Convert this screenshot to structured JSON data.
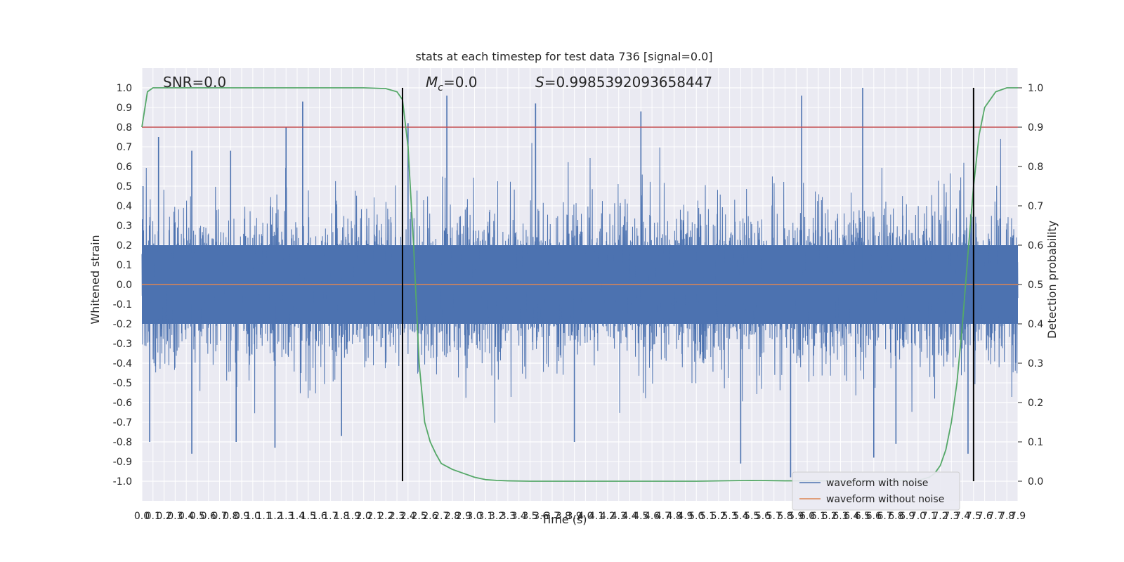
{
  "chart_data": {
    "type": "line",
    "title": "stats at each timestep for test data 736 [signal=0.0]",
    "xlabel": "Time (s)",
    "ylabel": "Whitened strain",
    "y2label": "Detection probability",
    "xlim": [
      0.0,
      7.9
    ],
    "ylim": [
      -1.1,
      1.1
    ],
    "y2lim": [
      -0.05,
      1.05
    ],
    "x_tick_labels": [
      "0.0",
      "0.1",
      "0.2",
      "0.3",
      "0.4",
      "0.5",
      "0.6",
      "0.7",
      "0.8",
      "0.9",
      "1.0",
      "1.1",
      "1.2",
      "1.3",
      "1.4",
      "1.5",
      "1.6",
      "1.7",
      "1.8",
      "1.9",
      "2.0",
      "2.1",
      "2.2",
      "2.3",
      "2.4",
      "2.5",
      "2.6",
      "2.7",
      "2.8",
      "2.9",
      "3.0",
      "3.1",
      "3.2",
      "3.3",
      "3.4",
      "3.5",
      "3.6",
      "3.7",
      "3.8",
      "3.9",
      "4.0",
      "4.1",
      "4.2",
      "4.3",
      "4.4",
      "4.5",
      "4.6",
      "4.7",
      "4.8",
      "4.9",
      "5.0",
      "5.1",
      "5.2",
      "5.3",
      "5.4",
      "5.5",
      "5.6",
      "5.7",
      "5.8",
      "5.9",
      "6.0",
      "6.1",
      "6.2",
      "6.3",
      "6.4",
      "6.5",
      "6.6",
      "6.7",
      "6.8",
      "6.9",
      "7.0",
      "7.1",
      "7.2",
      "7.3",
      "7.4",
      "7.5",
      "7.6",
      "7.7",
      "7.8",
      "7.9"
    ],
    "y_tick_labels": [
      "1.0",
      "0.9",
      "0.8",
      "0.7",
      "0.6",
      "0.5",
      "0.4",
      "0.3",
      "0.2",
      "0.1",
      "0.0",
      "-0.1",
      "-0.2",
      "-0.3",
      "-0.4",
      "-0.5",
      "-0.6",
      "-0.7",
      "-0.8",
      "-0.9",
      "-1.0"
    ],
    "y2_tick_labels": [
      "1.0",
      "0.9",
      "0.8",
      "0.7",
      "0.6",
      "0.5",
      "0.4",
      "0.3",
      "0.2",
      "0.1",
      "0.0"
    ],
    "annotations": {
      "snr": "SNR=0.0",
      "mc_symbol": "M",
      "mc_sub": "c",
      "mc_value": "=0.0",
      "s_symbol": "S",
      "s_value": "=0.9985392093658447"
    },
    "legend": {
      "placement": "lower right",
      "entries": [
        "waveform with noise",
        "waveform without noise"
      ]
    },
    "threshold": 0.8,
    "vertical_markers": [
      2.35,
      7.5
    ],
    "series": [
      {
        "name": "waveform with noise",
        "color": "#4c72b0",
        "note_values": "dense whitened noise; spikes listed as [x, y]",
        "spikes_up": [
          [
            0.01,
            0.5
          ],
          [
            0.15,
            0.75
          ],
          [
            0.45,
            0.68
          ],
          [
            0.8,
            0.68
          ],
          [
            1.3,
            0.8
          ],
          [
            1.45,
            0.93
          ],
          [
            2.4,
            0.82
          ],
          [
            2.75,
            0.96
          ],
          [
            3.55,
            0.92
          ],
          [
            4.5,
            0.88
          ],
          [
            5.95,
            0.96
          ],
          [
            6.5,
            1.0
          ]
        ],
        "spikes_down": [
          [
            0.07,
            -0.8
          ],
          [
            0.45,
            -0.86
          ],
          [
            0.85,
            -0.8
          ],
          [
            1.2,
            -0.83
          ],
          [
            1.8,
            -0.77
          ],
          [
            2.35,
            -0.71
          ],
          [
            3.9,
            -0.8
          ],
          [
            5.4,
            -0.91
          ],
          [
            5.85,
            -0.98
          ],
          [
            6.6,
            -0.88
          ],
          [
            6.8,
            -0.81
          ],
          [
            7.45,
            -0.86
          ]
        ]
      },
      {
        "name": "waveform without noise",
        "color": "#dd8452",
        "x": [
          0.0,
          7.9
        ],
        "y": [
          0.0,
          0.0
        ]
      },
      {
        "name": "",
        "color": "#55a868",
        "axis": "right",
        "x": [
          0.0,
          0.05,
          0.1,
          0.2,
          0.4,
          1.0,
          1.5,
          2.0,
          2.2,
          2.3,
          2.35,
          2.4,
          2.45,
          2.5,
          2.55,
          2.6,
          2.65,
          2.7,
          2.8,
          2.9,
          3.0,
          3.1,
          3.2,
          3.3,
          3.5,
          4.0,
          5.0,
          5.5,
          5.8,
          6.5,
          7.0,
          7.1,
          7.15,
          7.2,
          7.25,
          7.3,
          7.35,
          7.4,
          7.45,
          7.5,
          7.55,
          7.6,
          7.7,
          7.8,
          7.9
        ],
        "y": [
          0.9,
          0.99,
          1.0,
          1.0,
          1.0,
          1.0,
          1.0,
          1.0,
          0.998,
          0.99,
          0.97,
          0.85,
          0.6,
          0.3,
          0.15,
          0.1,
          0.07,
          0.045,
          0.03,
          0.02,
          0.01,
          0.004,
          0.002,
          0.001,
          0.0,
          0.0,
          0.0,
          0.002,
          0.001,
          0.001,
          0.002,
          0.01,
          0.02,
          0.04,
          0.08,
          0.15,
          0.25,
          0.4,
          0.58,
          0.75,
          0.88,
          0.95,
          0.99,
          1.0,
          1.0
        ]
      },
      {
        "name": "",
        "color": "#c44e52",
        "axis": "left",
        "x": [
          0.0,
          7.9
        ],
        "y": [
          0.8,
          0.8
        ]
      }
    ]
  }
}
